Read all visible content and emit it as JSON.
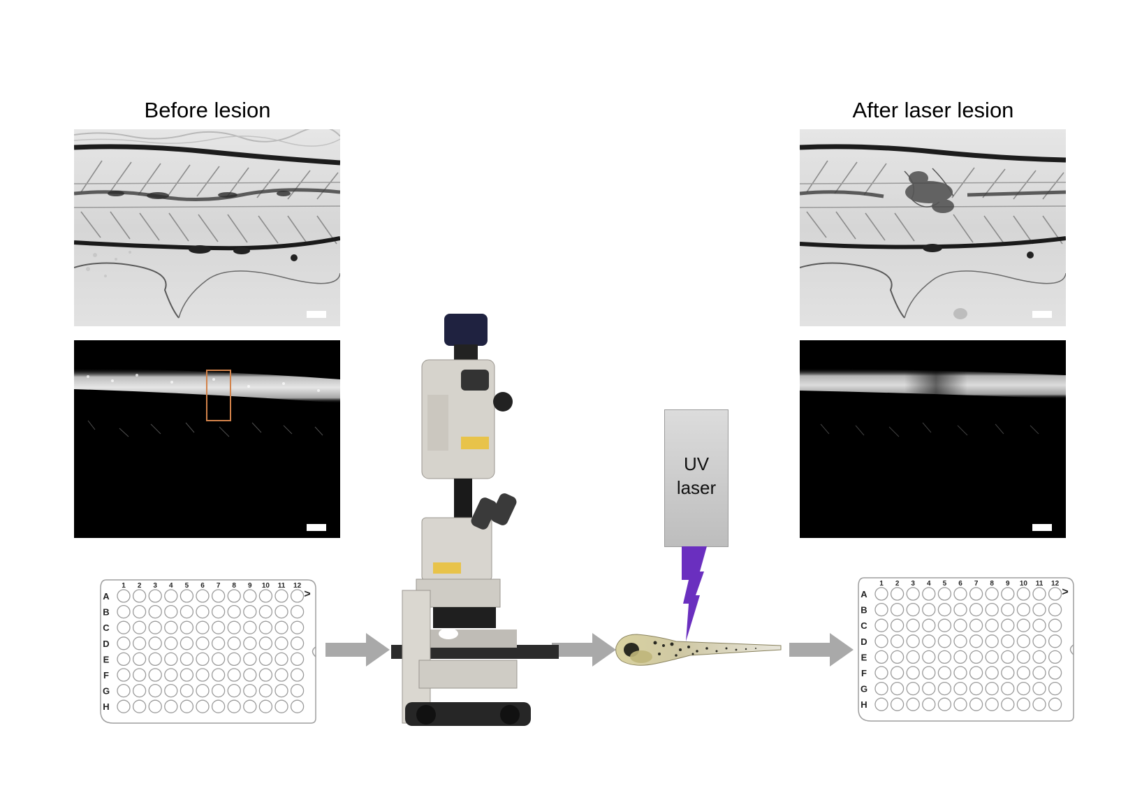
{
  "before": {
    "title": "Before lesion"
  },
  "after": {
    "title": "After laser lesion"
  },
  "laser": {
    "line1": "UV",
    "line2": "laser"
  },
  "plate": {
    "columns": [
      "1",
      "2",
      "3",
      "4",
      "5",
      "6",
      "7",
      "8",
      "9",
      "10",
      "11",
      "12"
    ],
    "rows": [
      "A",
      "B",
      "C",
      "D",
      "E",
      "F",
      "G",
      "H"
    ],
    "corner_mark": ">"
  },
  "colors": {
    "arrow": "#a9a9a9",
    "laser_bolt": "#6a2fbf",
    "roi_box": "#d2824a"
  },
  "icons": {
    "microscope": "microscope-icon",
    "zebrafish": "zebrafish-larva-icon",
    "bolt": "laser-bolt-icon"
  }
}
